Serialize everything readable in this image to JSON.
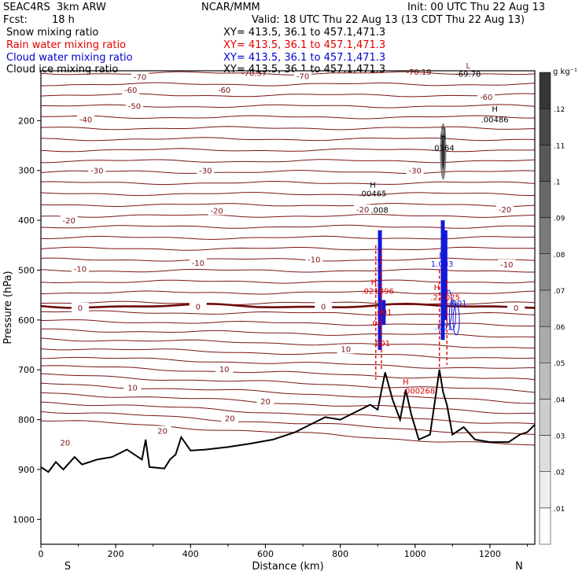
{
  "header": {
    "model": "SEAC4RS  3km ARW",
    "center": "NCAR/MMM",
    "init": "Init: 00 UTC Thu 22 Aug 13",
    "fcst_label": "Fcst:",
    "fcst_value": "18 h",
    "valid": "Valid: 18 UTC Thu 22 Aug 13 (13 CDT Thu 22 Aug 13)"
  },
  "fields": [
    {
      "name": "Snow mixing ratio",
      "xy": "XY= 413.5, 36.1 to 457.1,471.3",
      "color": "#000000"
    },
    {
      "name": "Rain water mixing ratio",
      "xy": "XY= 413.5, 36.1 to 457.1,471.3",
      "color": "#e00000"
    },
    {
      "name": "Cloud water mixing ratio",
      "xy": "XY= 413.5, 36.1 to 457.1,471.3",
      "color": "#0000d0"
    },
    {
      "name": "Cloud ice mixing ratio",
      "xy": "XY= 413.5, 36.1 to 457.1,471.3",
      "color": "#000000"
    }
  ],
  "chart_data": {
    "type": "cross-section",
    "xlabel": "Distance (km)",
    "ylabel": "Pressure (hPa)",
    "xlim": [
      0,
      1320
    ],
    "ylim": [
      100,
      1050
    ],
    "x_ticks": [
      0,
      200,
      400,
      600,
      800,
      1000,
      1200
    ],
    "y_ticks": [
      200,
      300,
      400,
      500,
      600,
      700,
      800,
      900,
      1000
    ],
    "x_end_labels": {
      "left": "S",
      "right": "N"
    },
    "temperature_contours_degC": [
      -70,
      -60,
      -50,
      -40,
      -30,
      -20,
      -10,
      0,
      10,
      20
    ],
    "temperature_contour_labels": [
      "-70",
      "-60",
      "-50",
      "-40",
      "-30",
      "-20",
      "-10",
      "0",
      "10",
      "20"
    ],
    "colorbar": {
      "unit": "g kg⁻¹",
      "ticks": [
        ".01",
        ".02",
        ".03",
        ".04",
        ".05",
        ".06",
        ".07",
        ".08",
        ".09",
        ".1",
        ".11",
        ".12"
      ]
    },
    "annotations": [
      {
        "text": "-70.37",
        "x": 570,
        "p": 110
      },
      {
        "text": "-70.19",
        "x": 1010,
        "p": 108
      },
      {
        "text": "L",
        "x": 1142,
        "p": 95
      },
      {
        "text": "-69.78",
        "x": 1142,
        "p": 112
      },
      {
        "text": "H",
        "x": 1213,
        "p": 182
      },
      {
        "text": ".00486",
        "x": 1213,
        "p": 203
      },
      {
        "text": "H",
        "x": 1075,
        "p": 238
      },
      {
        "text": ".0164",
        "x": 1075,
        "p": 260
      },
      {
        "text": "H",
        "x": 887,
        "p": 334
      },
      {
        "text": ".00465",
        "x": 887,
        "p": 352
      },
      {
        "text": ".008",
        "x": 905,
        "p": 385
      },
      {
        "text": "H",
        "x": 1072,
        "p": 475
      },
      {
        "text": "1.003",
        "x": 1072,
        "p": 493
      },
      {
        "text": "H",
        "x": 890,
        "p": 530
      },
      {
        "text": ".021896",
        "x": 900,
        "p": 547
      },
      {
        "text": "H",
        "x": 1058,
        "p": 540
      },
      {
        "text": ".22",
        "x": 1058,
        "p": 560
      },
      {
        "text": ".025",
        "x": 1097,
        "p": 560
      },
      {
        "text": ".001",
        "x": 1115,
        "p": 572
      },
      {
        "text": ".001",
        "x": 915,
        "p": 590
      },
      {
        "text": ".00",
        "x": 896,
        "p": 612
      },
      {
        "text": ".001",
        "x": 1076,
        "p": 620
      },
      {
        "text": ".001",
        "x": 910,
        "p": 652
      },
      {
        "text": "H",
        "x": 975,
        "p": 730
      },
      {
        "text": ".000268",
        "x": 1010,
        "p": 748
      }
    ]
  }
}
